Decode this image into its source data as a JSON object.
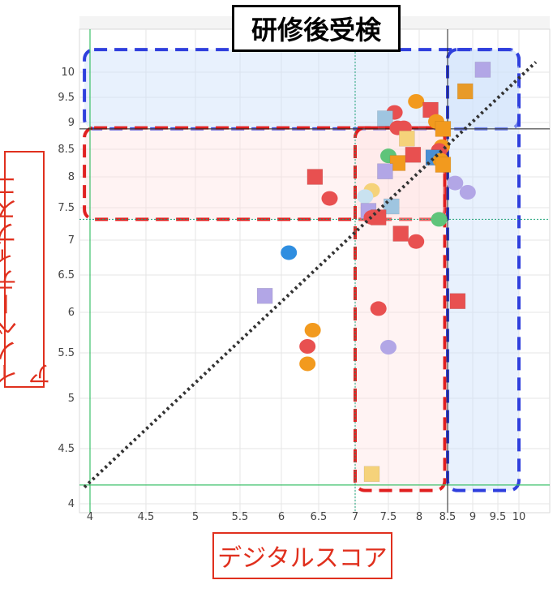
{
  "title": "研修後受検",
  "chart_data": {
    "type": "scatter",
    "title": "研修後受検",
    "xlabel": "デジタルスコア",
    "ylabel": "イノベーティブスコア",
    "xlim": [
      3.95,
      10.35
    ],
    "ylim": [
      3.95,
      10.7
    ],
    "xticks": [
      4,
      4.5,
      5,
      5.5,
      6,
      6.5,
      7,
      7.5,
      8,
      8.5,
      9,
      9.5,
      10
    ],
    "yticks": [
      4,
      4.5,
      5,
      5.5,
      6,
      6.5,
      7,
      7.5,
      8,
      8.5,
      9,
      9.5,
      10
    ],
    "ytick_labels": [
      "4",
      "4.5",
      "5",
      "5.5",
      "6",
      "6.5",
      "7",
      "7.5",
      "8",
      "8.5",
      "9",
      "9.5",
      "10"
    ],
    "threshold_lines": {
      "green_x": 4.0,
      "green_y": 4.17,
      "black_x": 8.5,
      "black_y": 8.88,
      "teal_dotted_x": 7.0,
      "teal_dotted_y": 7.32
    },
    "diagonal_line": {
      "from": [
        3.95,
        4.15
      ],
      "to": [
        10.4,
        10.2
      ]
    },
    "highlight_regions": [
      {
        "name": "top-band",
        "x": [
          3.95,
          10.0
        ],
        "y": [
          8.88,
          10.45
        ],
        "color": "#2f3fdd"
      },
      {
        "name": "right-band",
        "x": [
          8.5,
          10.0
        ],
        "y": [
          4.12,
          10.45
        ],
        "color": "#2f3fdd"
      },
      {
        "name": "left-band",
        "x": [
          3.95,
          8.45
        ],
        "y": [
          7.32,
          8.9
        ],
        "color": "#e02020"
      },
      {
        "name": "center-band",
        "x": [
          7.0,
          8.45
        ],
        "y": [
          4.12,
          8.9
        ],
        "color": "#e02020"
      }
    ],
    "points": [
      {
        "x": 9.2,
        "y": 10.05,
        "shape": "square",
        "color": "#b2a6e6"
      },
      {
        "x": 8.85,
        "y": 9.62,
        "shape": "square",
        "color": "#e89a28"
      },
      {
        "x": 7.95,
        "y": 9.42,
        "shape": "circle",
        "color": "#f29a1e"
      },
      {
        "x": 8.2,
        "y": 9.25,
        "shape": "square",
        "color": "#e85050"
      },
      {
        "x": 7.6,
        "y": 9.2,
        "shape": "circle",
        "color": "#e85050"
      },
      {
        "x": 7.45,
        "y": 9.08,
        "shape": "square",
        "color": "#9fc5e0"
      },
      {
        "x": 8.3,
        "y": 9.02,
        "shape": "circle",
        "color": "#f29a1e"
      },
      {
        "x": 7.65,
        "y": 8.9,
        "shape": "circle",
        "color": "#e85050"
      },
      {
        "x": 7.75,
        "y": 8.9,
        "shape": "circle",
        "color": "#e85050"
      },
      {
        "x": 8.42,
        "y": 8.88,
        "shape": "square",
        "color": "#f29a1e"
      },
      {
        "x": 7.8,
        "y": 8.7,
        "shape": "square",
        "color": "#f5d27a"
      },
      {
        "x": 8.4,
        "y": 8.55,
        "shape": "circle",
        "color": "#f29a1e"
      },
      {
        "x": 8.35,
        "y": 8.48,
        "shape": "circle",
        "color": "#e85050"
      },
      {
        "x": 7.9,
        "y": 8.4,
        "shape": "square",
        "color": "#e85050"
      },
      {
        "x": 7.5,
        "y": 8.38,
        "shape": "circle",
        "color": "#5fc47a"
      },
      {
        "x": 8.25,
        "y": 8.35,
        "shape": "square",
        "color": "#4a8fd4"
      },
      {
        "x": 8.38,
        "y": 8.3,
        "shape": "circle",
        "color": "#f29a1e"
      },
      {
        "x": 7.65,
        "y": 8.25,
        "shape": "square",
        "color": "#f29a1e"
      },
      {
        "x": 8.42,
        "y": 8.22,
        "shape": "square",
        "color": "#f29a1e"
      },
      {
        "x": 7.45,
        "y": 8.1,
        "shape": "square",
        "color": "#b2a6e6"
      },
      {
        "x": 6.45,
        "y": 8.0,
        "shape": "square",
        "color": "#e85050"
      },
      {
        "x": 8.65,
        "y": 7.9,
        "shape": "circle",
        "color": "#b2a6e6"
      },
      {
        "x": 7.25,
        "y": 7.78,
        "shape": "circle",
        "color": "#f5d27a"
      },
      {
        "x": 8.9,
        "y": 7.75,
        "shape": "circle",
        "color": "#b2a6e6"
      },
      {
        "x": 7.15,
        "y": 7.68,
        "shape": "circle",
        "color": "#c9e2f0"
      },
      {
        "x": 6.65,
        "y": 7.65,
        "shape": "circle",
        "color": "#e85050"
      },
      {
        "x": 7.55,
        "y": 7.52,
        "shape": "square",
        "color": "#9fc5e0"
      },
      {
        "x": 7.2,
        "y": 7.45,
        "shape": "square",
        "color": "#b2a6e6"
      },
      {
        "x": 7.35,
        "y": 7.35,
        "shape": "square",
        "color": "#e85050"
      },
      {
        "x": 8.35,
        "y": 7.32,
        "shape": "circle",
        "color": "#5fc47a"
      },
      {
        "x": 7.25,
        "y": 7.35,
        "shape": "circle",
        "color": "#e85050"
      },
      {
        "x": 7.7,
        "y": 7.1,
        "shape": "square",
        "color": "#e85050"
      },
      {
        "x": 7.95,
        "y": 6.98,
        "shape": "circle",
        "color": "#e85050"
      },
      {
        "x": 6.1,
        "y": 6.82,
        "shape": "circle",
        "color": "#2f8ee0"
      },
      {
        "x": 5.8,
        "y": 6.22,
        "shape": "square",
        "color": "#b2a6e6"
      },
      {
        "x": 8.7,
        "y": 6.15,
        "shape": "square",
        "color": "#e85050"
      },
      {
        "x": 7.35,
        "y": 6.05,
        "shape": "circle",
        "color": "#e85050"
      },
      {
        "x": 6.42,
        "y": 5.78,
        "shape": "circle",
        "color": "#f29a1e"
      },
      {
        "x": 6.35,
        "y": 5.58,
        "shape": "circle",
        "color": "#e85050"
      },
      {
        "x": 7.5,
        "y": 5.57,
        "shape": "circle",
        "color": "#b2a6e6"
      },
      {
        "x": 6.35,
        "y": 5.38,
        "shape": "circle",
        "color": "#f29a1e"
      },
      {
        "x": 7.25,
        "y": 4.27,
        "shape": "square",
        "color": "#f5d27a"
      }
    ]
  }
}
